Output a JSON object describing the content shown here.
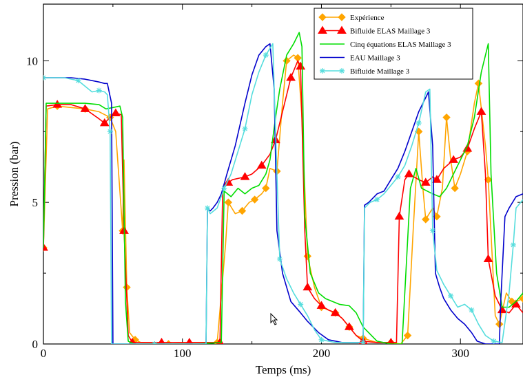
{
  "chart_data": {
    "type": "line",
    "title": "",
    "xlabel": "Temps (ms)",
    "ylabel": "Pression (bar)",
    "xlim": [
      0,
      345
    ],
    "ylim": [
      0,
      12
    ],
    "xticks": [
      0,
      100,
      200,
      300
    ],
    "yticks": [
      0,
      5,
      10
    ],
    "grid": false,
    "legend_position": "top-right",
    "series": [
      {
        "name": "Expérience",
        "color": "#ffa500",
        "marker": "diamond",
        "points": [
          [
            0,
            3.4
          ],
          [
            3,
            8.3
          ],
          [
            10,
            8.4
          ],
          [
            20,
            8.35
          ],
          [
            30,
            8.3
          ],
          [
            40,
            8.2
          ],
          [
            48,
            8.0
          ],
          [
            52,
            7.5
          ],
          [
            57,
            4.0
          ],
          [
            58,
            6.5
          ],
          [
            60,
            2.0
          ],
          [
            62,
            0.4
          ],
          [
            66,
            0.15
          ],
          [
            70,
            0.05
          ],
          [
            90,
            0.0
          ],
          [
            110,
            0.05
          ],
          [
            125,
            0.05
          ],
          [
            131,
            3.5
          ],
          [
            133,
            5.0
          ],
          [
            138,
            4.6
          ],
          [
            143,
            4.7
          ],
          [
            148,
            5.0
          ],
          [
            152,
            5.1
          ],
          [
            157,
            5.3
          ],
          [
            160,
            5.5
          ],
          [
            163,
            6.2
          ],
          [
            168,
            6.1
          ],
          [
            172,
            8.5
          ],
          [
            175,
            10.0
          ],
          [
            180,
            10.2
          ],
          [
            183,
            10.1
          ],
          [
            186,
            8.0
          ],
          [
            190,
            3.1
          ],
          [
            195,
            2.0
          ],
          [
            200,
            1.3
          ],
          [
            205,
            1.2
          ],
          [
            210,
            1.1
          ],
          [
            215,
            0.9
          ],
          [
            220,
            0.6
          ],
          [
            225,
            0.3
          ],
          [
            230,
            0.2
          ],
          [
            240,
            0.05
          ],
          [
            250,
            0.05
          ],
          [
            257,
            0.0
          ],
          [
            262,
            0.3
          ],
          [
            266,
            4.0
          ],
          [
            270,
            7.5
          ],
          [
            273,
            5.5
          ],
          [
            275,
            4.4
          ],
          [
            280,
            4.8
          ],
          [
            283,
            4.5
          ],
          [
            287,
            5.5
          ],
          [
            290,
            8.0
          ],
          [
            293,
            6.5
          ],
          [
            296,
            5.5
          ],
          [
            300,
            6.0
          ],
          [
            305,
            6.8
          ],
          [
            310,
            8.5
          ],
          [
            313,
            9.2
          ],
          [
            318,
            7.0
          ],
          [
            320,
            5.8
          ],
          [
            325,
            1.0
          ],
          [
            328,
            0.7
          ],
          [
            333,
            1.8
          ],
          [
            337,
            1.5
          ],
          [
            340,
            1.5
          ],
          [
            345,
            1.6
          ]
        ]
      },
      {
        "name": "Bifluide ELAS Maillage 3",
        "color": "#ff0000",
        "marker": "triangle",
        "points": [
          [
            0,
            3.4
          ],
          [
            2,
            8.4
          ],
          [
            10,
            8.45
          ],
          [
            20,
            8.45
          ],
          [
            30,
            8.3
          ],
          [
            40,
            7.95
          ],
          [
            44,
            7.8
          ],
          [
            48,
            8.0
          ],
          [
            52,
            8.15
          ],
          [
            56,
            8.1
          ],
          [
            58,
            4.0
          ],
          [
            61,
            0.3
          ],
          [
            64,
            0.05
          ],
          [
            73,
            0.05
          ],
          [
            85,
            0.05
          ],
          [
            95,
            0.05
          ],
          [
            105,
            0.05
          ],
          [
            117,
            0.05
          ],
          [
            127,
            0.05
          ],
          [
            129,
            5.5
          ],
          [
            133,
            5.7
          ],
          [
            136,
            5.8
          ],
          [
            145,
            5.9
          ],
          [
            150,
            6.0
          ],
          [
            157,
            6.3
          ],
          [
            163,
            6.7
          ],
          [
            167,
            7.2
          ],
          [
            172,
            8.2
          ],
          [
            178,
            9.4
          ],
          [
            183,
            10.0
          ],
          [
            185,
            9.8
          ],
          [
            188,
            4.0
          ],
          [
            190,
            2.0
          ],
          [
            195,
            1.6
          ],
          [
            200,
            1.35
          ],
          [
            205,
            1.2
          ],
          [
            210,
            1.1
          ],
          [
            215,
            0.9
          ],
          [
            220,
            0.6
          ],
          [
            225,
            0.3
          ],
          [
            230,
            0.1
          ],
          [
            240,
            0.05
          ],
          [
            250,
            0.05
          ],
          [
            254,
            0.05
          ],
          [
            256,
            4.5
          ],
          [
            260,
            5.8
          ],
          [
            263,
            6.0
          ],
          [
            270,
            5.8
          ],
          [
            275,
            5.7
          ],
          [
            280,
            5.9
          ],
          [
            283,
            5.8
          ],
          [
            288,
            6.2
          ],
          [
            295,
            6.5
          ],
          [
            300,
            6.6
          ],
          [
            305,
            6.9
          ],
          [
            310,
            7.6
          ],
          [
            315,
            8.2
          ],
          [
            318,
            6.0
          ],
          [
            320,
            3.0
          ],
          [
            325,
            1.7
          ],
          [
            330,
            1.2
          ],
          [
            335,
            1.1
          ],
          [
            340,
            1.4
          ],
          [
            345,
            1.1
          ]
        ]
      },
      {
        "name": "Cinq équations ELAS Maillage 3",
        "color": "#00dd00",
        "marker": "none",
        "points": [
          [
            0,
            3.4
          ],
          [
            2,
            8.5
          ],
          [
            10,
            8.5
          ],
          [
            20,
            8.5
          ],
          [
            30,
            8.5
          ],
          [
            40,
            8.45
          ],
          [
            45,
            8.3
          ],
          [
            50,
            8.35
          ],
          [
            55,
            8.4
          ],
          [
            57,
            8.0
          ],
          [
            59,
            1.5
          ],
          [
            61,
            0.1
          ],
          [
            65,
            0.0
          ],
          [
            90,
            0.0
          ],
          [
            110,
            0.0
          ],
          [
            128,
            0.05
          ],
          [
            130,
            5.4
          ],
          [
            135,
            5.2
          ],
          [
            140,
            5.5
          ],
          [
            145,
            5.3
          ],
          [
            150,
            5.5
          ],
          [
            155,
            5.6
          ],
          [
            160,
            6.0
          ],
          [
            163,
            6.5
          ],
          [
            167,
            8.0
          ],
          [
            170,
            9.0
          ],
          [
            175,
            10.2
          ],
          [
            180,
            10.6
          ],
          [
            184,
            11.0
          ],
          [
            186,
            10.5
          ],
          [
            188,
            4.5
          ],
          [
            192,
            2.5
          ],
          [
            198,
            1.8
          ],
          [
            203,
            1.6
          ],
          [
            208,
            1.5
          ],
          [
            213,
            1.4
          ],
          [
            220,
            1.35
          ],
          [
            225,
            1.1
          ],
          [
            230,
            0.6
          ],
          [
            240,
            0.1
          ],
          [
            250,
            0.0
          ],
          [
            258,
            0.0
          ],
          [
            264,
            5.5
          ],
          [
            268,
            6.2
          ],
          [
            272,
            5.5
          ],
          [
            276,
            5.4
          ],
          [
            280,
            5.3
          ],
          [
            285,
            5.2
          ],
          [
            290,
            5.5
          ],
          [
            295,
            6.0
          ],
          [
            300,
            6.5
          ],
          [
            305,
            7.0
          ],
          [
            310,
            8.0
          ],
          [
            315,
            9.6
          ],
          [
            320,
            10.6
          ],
          [
            322,
            6.0
          ],
          [
            326,
            2.5
          ],
          [
            330,
            1.3
          ],
          [
            335,
            1.3
          ],
          [
            340,
            1.5
          ],
          [
            345,
            1.8
          ]
        ]
      },
      {
        "name": "EAU Maillage 3",
        "color": "#0000cc",
        "marker": "none",
        "points": [
          [
            0,
            9.4
          ],
          [
            10,
            9.4
          ],
          [
            20,
            9.4
          ],
          [
            30,
            9.35
          ],
          [
            40,
            9.25
          ],
          [
            44,
            9.2
          ],
          [
            46,
            9.2
          ],
          [
            49,
            8.5
          ],
          [
            50,
            0.0
          ],
          [
            60,
            0.0
          ],
          [
            80,
            0.0
          ],
          [
            100,
            0.0
          ],
          [
            117,
            0.0
          ],
          [
            118,
            4.8
          ],
          [
            120,
            4.7
          ],
          [
            122,
            4.8
          ],
          [
            125,
            5.0
          ],
          [
            128,
            5.3
          ],
          [
            132,
            6.0
          ],
          [
            138,
            7.0
          ],
          [
            145,
            8.5
          ],
          [
            150,
            9.5
          ],
          [
            155,
            10.2
          ],
          [
            160,
            10.5
          ],
          [
            163,
            10.6
          ],
          [
            166,
            9.0
          ],
          [
            168,
            4.0
          ],
          [
            172,
            2.5
          ],
          [
            178,
            1.5
          ],
          [
            185,
            1.1
          ],
          [
            190,
            0.8
          ],
          [
            198,
            0.4
          ],
          [
            205,
            0.15
          ],
          [
            215,
            0.05
          ],
          [
            228,
            0.05
          ],
          [
            230,
            0.05
          ],
          [
            231,
            4.9
          ],
          [
            234,
            5.0
          ],
          [
            240,
            5.3
          ],
          [
            245,
            5.4
          ],
          [
            250,
            5.8
          ],
          [
            255,
            6.2
          ],
          [
            260,
            6.8
          ],
          [
            265,
            7.5
          ],
          [
            270,
            8.2
          ],
          [
            275,
            8.7
          ],
          [
            277,
            8.9
          ],
          [
            280,
            7.0
          ],
          [
            282,
            2.5
          ],
          [
            285,
            2.0
          ],
          [
            288,
            1.6
          ],
          [
            293,
            1.2
          ],
          [
            298,
            0.9
          ],
          [
            303,
            0.7
          ],
          [
            308,
            0.4
          ],
          [
            312,
            0.1
          ],
          [
            318,
            0.0
          ],
          [
            328,
            0.0
          ],
          [
            329,
            1.5
          ],
          [
            332,
            4.5
          ],
          [
            335,
            4.8
          ],
          [
            340,
            5.2
          ],
          [
            345,
            5.3
          ]
        ]
      },
      {
        "name": "Bifluide Maillage 3",
        "color": "#55dddd",
        "marker": "star",
        "points": [
          [
            0,
            9.4
          ],
          [
            5,
            9.4
          ],
          [
            15,
            9.4
          ],
          [
            25,
            9.3
          ],
          [
            30,
            9.1
          ],
          [
            35,
            8.9
          ],
          [
            40,
            8.95
          ],
          [
            44,
            8.9
          ],
          [
            46,
            8.8
          ],
          [
            48,
            7.5
          ],
          [
            49,
            0.0
          ],
          [
            55,
            0.0
          ],
          [
            80,
            0.0
          ],
          [
            100,
            0.0
          ],
          [
            117,
            0.0
          ],
          [
            118,
            4.8
          ],
          [
            120,
            4.6
          ],
          [
            125,
            4.8
          ],
          [
            130,
            5.5
          ],
          [
            135,
            6.0
          ],
          [
            140,
            6.8
          ],
          [
            145,
            7.6
          ],
          [
            150,
            8.8
          ],
          [
            155,
            9.6
          ],
          [
            160,
            10.2
          ],
          [
            165,
            10.6
          ],
          [
            168,
            6.0
          ],
          [
            170,
            3.0
          ],
          [
            175,
            2.3
          ],
          [
            180,
            1.8
          ],
          [
            185,
            1.4
          ],
          [
            190,
            1.0
          ],
          [
            195,
            0.5
          ],
          [
            200,
            0.15
          ],
          [
            210,
            0.05
          ],
          [
            228,
            0.05
          ],
          [
            230,
            0.05
          ],
          [
            231,
            4.8
          ],
          [
            235,
            5.0
          ],
          [
            240,
            5.1
          ],
          [
            245,
            5.3
          ],
          [
            250,
            5.6
          ],
          [
            255,
            5.9
          ],
          [
            260,
            6.3
          ],
          [
            265,
            7.0
          ],
          [
            270,
            7.8
          ],
          [
            275,
            8.9
          ],
          [
            278,
            9.0
          ],
          [
            280,
            4.0
          ],
          [
            283,
            2.6
          ],
          [
            288,
            2.1
          ],
          [
            293,
            1.7
          ],
          [
            298,
            1.3
          ],
          [
            303,
            1.4
          ],
          [
            308,
            1.2
          ],
          [
            313,
            0.7
          ],
          [
            318,
            0.3
          ],
          [
            324,
            0.1
          ],
          [
            330,
            0.05
          ],
          [
            335,
            1.8
          ],
          [
            338,
            3.5
          ],
          [
            340,
            4.8
          ],
          [
            345,
            5.1
          ]
        ]
      }
    ]
  }
}
